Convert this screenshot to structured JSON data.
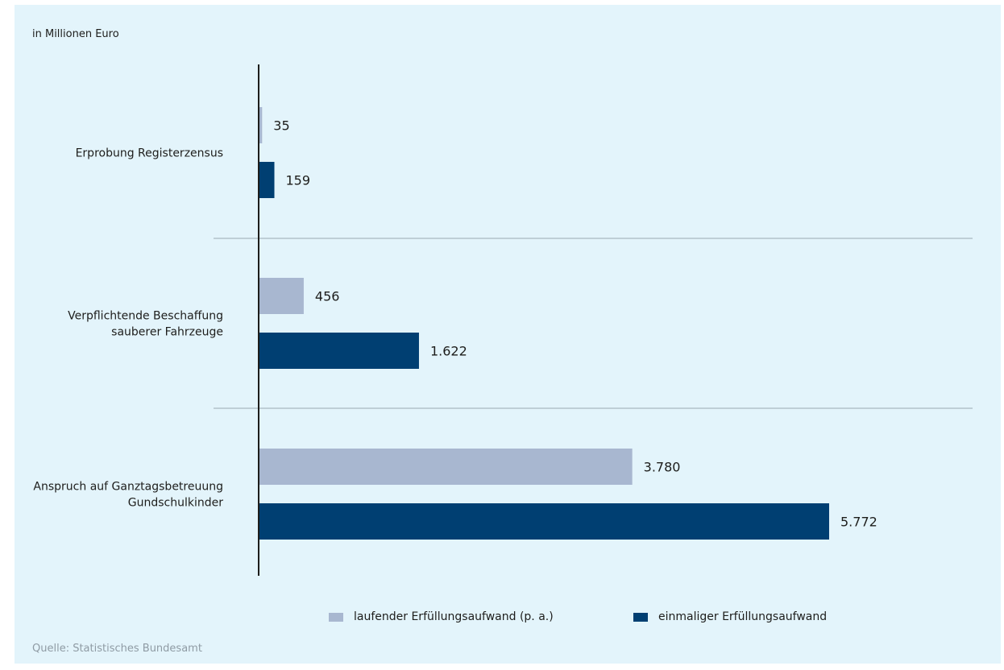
{
  "unit_label": "in Millionen Euro",
  "source": "Quelle: Statistisches Bundesamt",
  "colors": {
    "background": "#e3f4fb",
    "laufend": "#a8b7d0",
    "einmalig": "#003f72",
    "separator": "#9aa7b0",
    "axis": "#1d1d1b"
  },
  "legend": {
    "laufend": "laufender Erfüllungsaufwand (p. a.)",
    "einmalig": "einmaliger Erfüllungsaufwand"
  },
  "chart_data": {
    "type": "bar",
    "orientation": "horizontal",
    "categories": [
      [
        "Erprobung Registerzensus"
      ],
      [
        "Verpflichtende Beschaffung",
        "sauberer Fahrzeuge"
      ],
      [
        "Anspruch auf Ganztagsbetreuung",
        "Gundschulkinder"
      ]
    ],
    "series": [
      {
        "name": "laufender Erfüllungsaufwand (p. a.)",
        "values": [
          35,
          456,
          3780
        ],
        "labels": [
          "35",
          "456",
          "3.780"
        ]
      },
      {
        "name": "einmaliger Erfüllungsaufwand",
        "values": [
          159,
          1622,
          5772
        ],
        "labels": [
          "159",
          "1.622",
          "5.772"
        ]
      }
    ],
    "xlim": [
      0,
      5772
    ],
    "grid": false,
    "legend_position": "bottom"
  }
}
